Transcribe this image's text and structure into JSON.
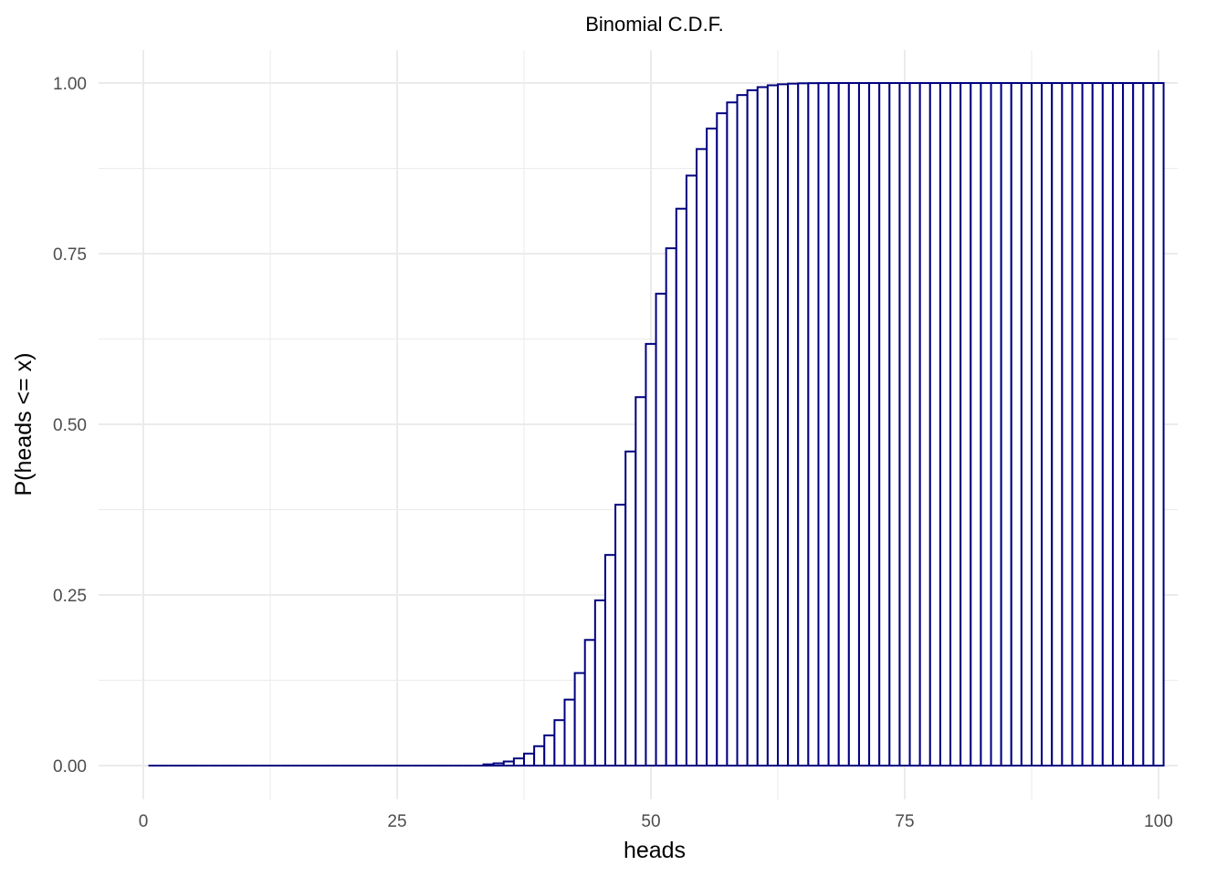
{
  "chart_data": {
    "type": "bar",
    "title": "Binomial C.D.F.",
    "xlabel": "heads",
    "ylabel": "P(heads <= x)",
    "x_ticks": [
      0,
      25,
      50,
      75,
      100
    ],
    "y_ticks": [
      0.0,
      0.25,
      0.5,
      0.75,
      1.0
    ],
    "y_tick_labels": [
      "0.00",
      "0.25",
      "0.50",
      "0.75",
      "1.00"
    ],
    "x_tick_labels": [
      "0",
      "25",
      "50",
      "75",
      "100"
    ],
    "xlim": [
      0,
      100
    ],
    "ylim": [
      0,
      1
    ],
    "grid": true,
    "bar_outline_color": "#000080",
    "bar_fill_color": "#ffffff",
    "grid_color": "#ebebeb",
    "x": [
      1,
      2,
      3,
      4,
      5,
      6,
      7,
      8,
      9,
      10,
      11,
      12,
      13,
      14,
      15,
      16,
      17,
      18,
      19,
      20,
      21,
      22,
      23,
      24,
      25,
      26,
      27,
      28,
      29,
      30,
      31,
      32,
      33,
      34,
      35,
      36,
      37,
      38,
      39,
      40,
      41,
      42,
      43,
      44,
      45,
      46,
      47,
      48,
      49,
      50,
      51,
      52,
      53,
      54,
      55,
      56,
      57,
      58,
      59,
      60,
      61,
      62,
      63,
      64,
      65,
      66,
      67,
      68,
      69,
      70,
      71,
      72,
      73,
      74,
      75,
      76,
      77,
      78,
      79,
      80,
      81,
      82,
      83,
      84,
      85,
      86,
      87,
      88,
      89,
      90,
      91,
      92,
      93,
      94,
      95,
      96,
      97,
      98,
      99,
      100
    ],
    "values": [
      0,
      0,
      0,
      0,
      0,
      0,
      0,
      0,
      0,
      0,
      0,
      0,
      0,
      0,
      0,
      0,
      0,
      0,
      0,
      0,
      0,
      0,
      0,
      0,
      0,
      0,
      0,
      0,
      0.0001,
      0.0001,
      0.0002,
      0.0004,
      0.0009,
      0.0018,
      0.0033,
      0.006,
      0.0105,
      0.0176,
      0.0284,
      0.0443,
      0.0666,
      0.0967,
      0.1356,
      0.1841,
      0.2421,
      0.3086,
      0.3822,
      0.4602,
      0.5398,
      0.6178,
      0.6914,
      0.7579,
      0.8159,
      0.8644,
      0.9033,
      0.9334,
      0.9557,
      0.9716,
      0.9824,
      0.9895,
      0.994,
      0.9967,
      0.9982,
      0.9991,
      0.9996,
      0.9998,
      0.9999,
      1,
      1,
      1,
      1,
      1,
      1,
      1,
      1,
      1,
      1,
      1,
      1,
      1,
      1,
      1,
      1,
      1,
      1,
      1,
      1,
      1,
      1,
      1,
      1,
      1,
      1,
      1,
      1,
      1,
      1,
      1,
      1,
      1
    ]
  }
}
